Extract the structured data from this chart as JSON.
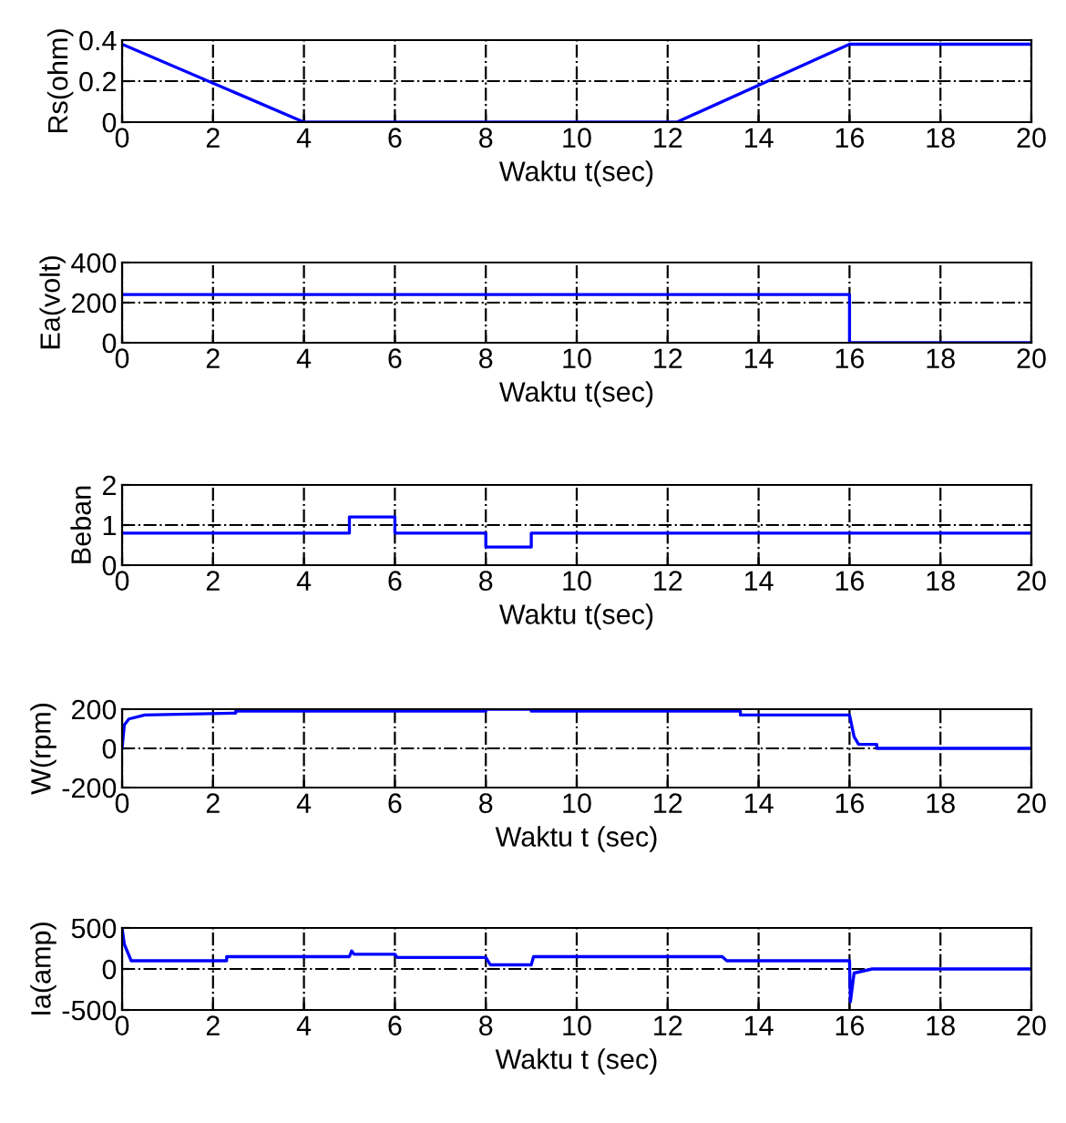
{
  "chart_data": [
    {
      "type": "line",
      "xlabel": "Waktu t(sec)",
      "ylabel": "Rs(ohm)",
      "x": [
        0,
        4,
        12.2,
        16,
        20
      ],
      "series": [
        {
          "color": "#0000ff",
          "values": [
            0.38,
            0,
            0,
            0.38,
            0.38
          ]
        }
      ],
      "xlim": [
        0,
        20
      ],
      "xticks": [
        0,
        2,
        4,
        6,
        8,
        10,
        12,
        14,
        16,
        18,
        20
      ],
      "ylim": [
        0,
        0.4
      ],
      "yticks": [
        0,
        0.2,
        0.4
      ],
      "grid": true
    },
    {
      "type": "line",
      "xlabel": "Waktu t(sec)",
      "ylabel": "Ea(volt)",
      "x": [
        0,
        16,
        16,
        20
      ],
      "series": [
        {
          "color": "#0000ff",
          "values": [
            240,
            240,
            0,
            0
          ]
        }
      ],
      "xlim": [
        0,
        20
      ],
      "xticks": [
        0,
        2,
        4,
        6,
        8,
        10,
        12,
        14,
        16,
        18,
        20
      ],
      "ylim": [
        0,
        400
      ],
      "yticks": [
        0,
        200,
        400
      ],
      "grid": true
    },
    {
      "type": "line",
      "xlabel": "Waktu t(sec)",
      "ylabel": "Beban",
      "x": [
        0,
        5,
        5,
        6,
        6,
        8,
        8,
        9,
        9,
        20
      ],
      "series": [
        {
          "color": "#0000ff",
          "values": [
            0.8,
            0.8,
            1.2,
            1.2,
            0.8,
            0.8,
            0.45,
            0.45,
            0.8,
            0.8
          ]
        }
      ],
      "xlim": [
        0,
        20
      ],
      "xticks": [
        0,
        2,
        4,
        6,
        8,
        10,
        12,
        14,
        16,
        18,
        20
      ],
      "ylim": [
        0,
        2
      ],
      "yticks": [
        0,
        1,
        2
      ],
      "grid": true
    },
    {
      "type": "line",
      "xlabel": "Waktu t (sec)",
      "ylabel": "W(rpm)",
      "x": [
        0,
        0.05,
        0.15,
        0.5,
        2.5,
        2.5,
        8,
        8,
        9,
        9,
        13.6,
        13.6,
        16,
        16.1,
        16.2,
        16.6,
        16.6,
        20
      ],
      "series": [
        {
          "color": "#0000ff",
          "values": [
            0,
            120,
            150,
            170,
            180,
            190,
            190,
            200,
            200,
            190,
            190,
            170,
            170,
            60,
            20,
            20,
            0,
            0
          ]
        }
      ],
      "xlim": [
        0,
        20
      ],
      "xticks": [
        0,
        2,
        4,
        6,
        8,
        10,
        12,
        14,
        16,
        18,
        20
      ],
      "ylim": [
        -200,
        200
      ],
      "yticks": [
        -200,
        0,
        200
      ],
      "grid": true
    },
    {
      "type": "line",
      "xlabel": "Waktu t (sec)",
      "ylabel": "Ia(amp)",
      "x": [
        0,
        0.05,
        0.2,
        2.3,
        2.3,
        5,
        5.05,
        5.1,
        6,
        6.05,
        8,
        8.1,
        9,
        9.05,
        13.2,
        13.3,
        16,
        16.02,
        16.1,
        16.5,
        20
      ],
      "series": [
        {
          "color": "#0000ff",
          "values": [
            500,
            300,
            100,
            100,
            150,
            150,
            220,
            180,
            180,
            140,
            140,
            50,
            50,
            150,
            150,
            100,
            100,
            -400,
            -50,
            0,
            0
          ]
        }
      ],
      "xlim": [
        0,
        20
      ],
      "xticks": [
        0,
        2,
        4,
        6,
        8,
        10,
        12,
        14,
        16,
        18,
        20
      ],
      "ylim": [
        -500,
        500
      ],
      "yticks": [
        -500,
        0,
        500
      ],
      "grid": true
    }
  ]
}
